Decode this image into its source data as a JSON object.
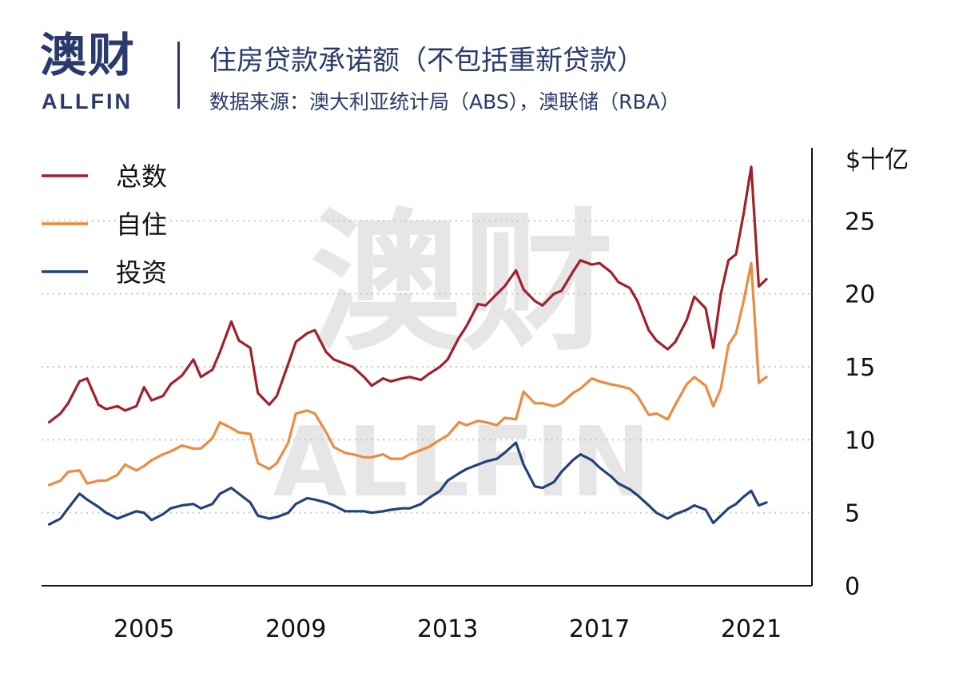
{
  "header": {
    "logo_cn": "澳财",
    "logo_en": "ALLFIN",
    "title": "住房贷款承诺额（不包括重新贷款）",
    "subtitle": "数据来源：澳大利亚统计局（ABS），澳联储（RBA）"
  },
  "watermark": {
    "cn": "澳财",
    "en": "ALLFIN"
  },
  "chart_data": {
    "type": "line",
    "ylabel": "$十亿",
    "ylim": [
      0,
      30
    ],
    "yticks": [
      0,
      5,
      10,
      15,
      20,
      25
    ],
    "xlim": [
      2002.3,
      2022.6
    ],
    "xticks": [
      2005,
      2009,
      2013,
      2017,
      2021
    ],
    "grid": "horizontal dotted",
    "legend_position": "top-left",
    "series": [
      {
        "name": "总数",
        "color": "#a31f2b",
        "x": [
          2002.5,
          2002.8,
          2003.0,
          2003.3,
          2003.5,
          2003.8,
          2004.0,
          2004.3,
          2004.5,
          2004.8,
          2005.0,
          2005.2,
          2005.5,
          2005.7,
          2006.0,
          2006.3,
          2006.5,
          2006.8,
          2007.0,
          2007.3,
          2007.5,
          2007.8,
          2008.0,
          2008.3,
          2008.5,
          2008.8,
          2009.0,
          2009.3,
          2009.5,
          2009.8,
          2010.0,
          2010.3,
          2010.5,
          2010.8,
          2011.0,
          2011.3,
          2011.5,
          2011.8,
          2012.0,
          2012.3,
          2012.5,
          2012.8,
          2013.0,
          2013.3,
          2013.5,
          2013.8,
          2014.0,
          2014.3,
          2014.5,
          2014.8,
          2015.0,
          2015.3,
          2015.5,
          2015.8,
          2016.0,
          2016.3,
          2016.5,
          2016.8,
          2017.0,
          2017.3,
          2017.5,
          2017.8,
          2018.0,
          2018.3,
          2018.5,
          2018.8,
          2019.0,
          2019.3,
          2019.5,
          2019.8,
          2020.0,
          2020.2,
          2020.4,
          2020.6,
          2020.8,
          2021.0,
          2021.2,
          2021.4
        ],
        "values": [
          11.2,
          11.8,
          12.5,
          14.0,
          14.2,
          12.4,
          12.1,
          12.3,
          12.0,
          12.3,
          13.6,
          12.7,
          13.0,
          13.8,
          14.4,
          15.5,
          14.3,
          14.8,
          16.0,
          18.1,
          16.8,
          16.3,
          13.2,
          12.4,
          13.0,
          15.2,
          16.7,
          17.3,
          17.5,
          16.0,
          15.5,
          15.2,
          15.0,
          14.3,
          13.7,
          14.2,
          14.0,
          14.2,
          14.3,
          14.1,
          14.5,
          15.0,
          15.5,
          17.0,
          17.8,
          19.3,
          19.2,
          20.0,
          20.5,
          21.6,
          20.3,
          19.5,
          19.2,
          20.0,
          20.2,
          21.5,
          22.3,
          22.0,
          22.1,
          21.5,
          20.8,
          20.4,
          19.5,
          17.5,
          16.8,
          16.2,
          16.7,
          18.2,
          19.8,
          19.0,
          16.3,
          20.0,
          22.3,
          22.7,
          25.5,
          28.7,
          20.5,
          21.0
        ],
        "label": "总数"
      },
      {
        "name": "自住",
        "color": "#ef8a3d",
        "x": [
          2002.5,
          2002.8,
          2003.0,
          2003.3,
          2003.5,
          2003.8,
          2004.0,
          2004.3,
          2004.5,
          2004.8,
          2005.0,
          2005.2,
          2005.5,
          2005.7,
          2006.0,
          2006.3,
          2006.5,
          2006.8,
          2007.0,
          2007.3,
          2007.5,
          2007.8,
          2008.0,
          2008.3,
          2008.5,
          2008.8,
          2009.0,
          2009.3,
          2009.5,
          2009.8,
          2010.0,
          2010.3,
          2010.5,
          2010.8,
          2011.0,
          2011.3,
          2011.5,
          2011.8,
          2012.0,
          2012.3,
          2012.5,
          2012.8,
          2013.0,
          2013.3,
          2013.5,
          2013.8,
          2014.0,
          2014.3,
          2014.5,
          2014.8,
          2015.0,
          2015.3,
          2015.5,
          2015.8,
          2016.0,
          2016.3,
          2016.5,
          2016.8,
          2017.0,
          2017.3,
          2017.5,
          2017.8,
          2018.0,
          2018.3,
          2018.5,
          2018.8,
          2019.0,
          2019.3,
          2019.5,
          2019.8,
          2020.0,
          2020.2,
          2020.4,
          2020.6,
          2020.8,
          2021.0,
          2021.2,
          2021.4
        ],
        "values": [
          6.9,
          7.2,
          7.8,
          7.9,
          7.0,
          7.2,
          7.2,
          7.6,
          8.3,
          7.9,
          8.2,
          8.6,
          9.0,
          9.2,
          9.6,
          9.4,
          9.4,
          10.1,
          11.2,
          10.8,
          10.5,
          10.4,
          8.4,
          8.0,
          8.4,
          9.8,
          11.8,
          12.0,
          11.8,
          10.5,
          9.5,
          9.1,
          9.0,
          8.8,
          8.8,
          9.0,
          8.7,
          8.7,
          9.0,
          9.3,
          9.5,
          10.0,
          10.3,
          11.2,
          11.0,
          11.3,
          11.2,
          11.0,
          11.5,
          11.4,
          13.3,
          12.5,
          12.5,
          12.3,
          12.5,
          13.2,
          13.5,
          14.2,
          14.0,
          13.8,
          13.7,
          13.5,
          13.0,
          11.7,
          11.8,
          11.4,
          12.4,
          13.8,
          14.3,
          13.7,
          12.3,
          13.5,
          16.5,
          17.3,
          19.5,
          22.1,
          13.9,
          14.3
        ],
        "label": "自住"
      },
      {
        "name": "投资",
        "color": "#22427c",
        "x": [
          2002.5,
          2002.8,
          2003.0,
          2003.3,
          2003.5,
          2003.8,
          2004.0,
          2004.3,
          2004.5,
          2004.8,
          2005.0,
          2005.2,
          2005.5,
          2005.7,
          2006.0,
          2006.3,
          2006.5,
          2006.8,
          2007.0,
          2007.3,
          2007.5,
          2007.8,
          2008.0,
          2008.3,
          2008.5,
          2008.8,
          2009.0,
          2009.3,
          2009.5,
          2009.8,
          2010.0,
          2010.3,
          2010.5,
          2010.8,
          2011.0,
          2011.3,
          2011.5,
          2011.8,
          2012.0,
          2012.3,
          2012.5,
          2012.8,
          2013.0,
          2013.3,
          2013.5,
          2013.8,
          2014.0,
          2014.3,
          2014.5,
          2014.8,
          2015.0,
          2015.3,
          2015.5,
          2015.8,
          2016.0,
          2016.3,
          2016.5,
          2016.8,
          2017.0,
          2017.3,
          2017.5,
          2017.8,
          2018.0,
          2018.3,
          2018.5,
          2018.8,
          2019.0,
          2019.3,
          2019.5,
          2019.8,
          2020.0,
          2020.2,
          2020.4,
          2020.6,
          2020.8,
          2021.0,
          2021.2,
          2021.4
        ],
        "values": [
          4.2,
          4.6,
          5.3,
          6.3,
          5.9,
          5.4,
          5.0,
          4.6,
          4.8,
          5.1,
          5.0,
          4.5,
          4.9,
          5.3,
          5.5,
          5.6,
          5.3,
          5.6,
          6.3,
          6.7,
          6.3,
          5.7,
          4.8,
          4.6,
          4.7,
          5.0,
          5.6,
          6.0,
          5.9,
          5.7,
          5.5,
          5.1,
          5.1,
          5.1,
          5.0,
          5.1,
          5.2,
          5.3,
          5.3,
          5.6,
          6.0,
          6.5,
          7.2,
          7.7,
          8.0,
          8.3,
          8.5,
          8.7,
          9.1,
          9.8,
          8.3,
          6.8,
          6.7,
          7.1,
          7.8,
          8.6,
          9.0,
          8.6,
          8.1,
          7.5,
          7.0,
          6.6,
          6.2,
          5.5,
          5.0,
          4.6,
          4.9,
          5.2,
          5.5,
          5.2,
          4.3,
          4.8,
          5.3,
          5.6,
          6.1,
          6.5,
          5.5,
          5.7
        ],
        "label": "投资"
      }
    ]
  }
}
